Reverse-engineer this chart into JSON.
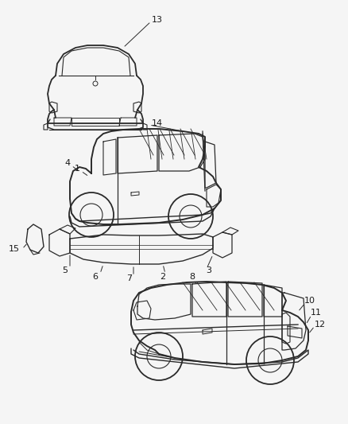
{
  "background_color": "#f5f5f5",
  "line_color": "#2a2a2a",
  "label_color": "#1a1a1a",
  "fig_width": 4.38,
  "fig_height": 5.33,
  "dpi": 100
}
